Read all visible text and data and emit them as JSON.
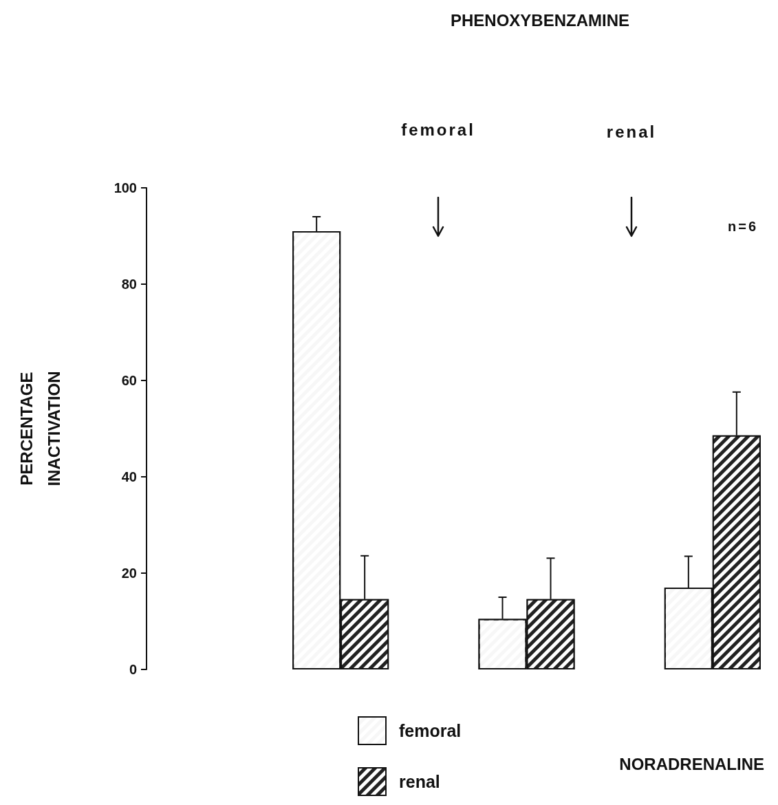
{
  "chart_data": {
    "type": "bar",
    "title": "PHENOXYBENZAMINE",
    "xlabel": "NORADRENALINE",
    "ylabel": "PERCENTAGE\nINACTIVATION",
    "categories": [
      null,
      null,
      null
    ],
    "series": [
      {
        "name": "femoral",
        "color": "#f7f7f7",
        "values": [
          91,
          10.5,
          17
        ],
        "errors": [
          3,
          4.5,
          6.5
        ]
      },
      {
        "name": "renal",
        "color": "#222222",
        "values": [
          14.6,
          14.6,
          48.6
        ],
        "errors": [
          9,
          8.5,
          9
        ]
      }
    ],
    "annotations": [
      "femoral",
      "renal",
      "n=6"
    ],
    "ylim": [
      0,
      100
    ],
    "yticks": [
      0,
      20,
      40,
      60,
      80,
      100
    ],
    "grid": false,
    "legend": "bottom"
  }
}
